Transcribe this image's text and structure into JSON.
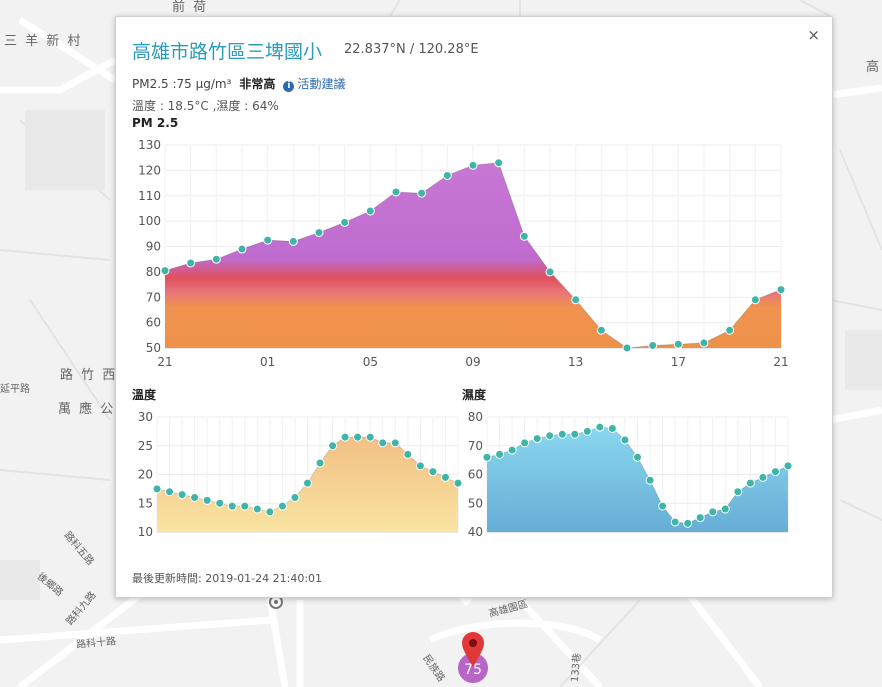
{
  "map": {
    "labels": [
      "前 荷",
      "三 羊 新 村",
      "高",
      "路 竹 西",
      "萬 應 公",
      "延平路",
      "路科五路",
      "後鄉路",
      "路科九路",
      "路科十路",
      "高雄園區",
      "民族路",
      "133巷"
    ],
    "cluster_value": "75"
  },
  "popup": {
    "title": "高雄市路竹區三埤國小",
    "coords": "22.837°N / 120.28°E",
    "close_icon": "×",
    "pm_text": "PM2.5 :75 μg/m³",
    "level": "非常高",
    "advice_link": "活動建議",
    "info_glyph": "i",
    "weather_text": "溫度 : 18.5°C ,濕度 : 64%",
    "updated": "最後更新時間: 2019-01-24 21:40:01"
  },
  "chart_data": [
    {
      "type": "area",
      "title": "PM 2.5",
      "x_tick_labels": [
        "21",
        "01",
        "05",
        "09",
        "13",
        "17",
        "21"
      ],
      "ylim": [
        50,
        130
      ],
      "yticks": [
        50,
        60,
        70,
        80,
        90,
        100,
        110,
        120,
        130
      ],
      "values": [
        80.5,
        83.5,
        85,
        89,
        92.5,
        92,
        95.5,
        99.5,
        104,
        111.5,
        111,
        118,
        122,
        123,
        94,
        80,
        69,
        57,
        50,
        51,
        51.5,
        52,
        57,
        69,
        73
      ]
    },
    {
      "type": "area",
      "title": "溫度",
      "ylim": [
        10,
        30
      ],
      "yticks": [
        10,
        15,
        20,
        25,
        30
      ],
      "values": [
        17.5,
        17,
        16.5,
        16,
        15.5,
        15,
        14.5,
        14.5,
        14,
        13.5,
        14.5,
        16,
        18.5,
        22,
        25,
        26.5,
        26.5,
        26.5,
        25.5,
        25.5,
        23.5,
        21.5,
        20.5,
        19.5,
        18.5
      ]
    },
    {
      "type": "area",
      "title": "濕度",
      "ylim": [
        40,
        80
      ],
      "yticks": [
        40,
        50,
        60,
        70,
        80
      ],
      "values": [
        66,
        67,
        68.5,
        71,
        72.5,
        73.5,
        74,
        74,
        75,
        76.5,
        76,
        72,
        66,
        58,
        49,
        43.5,
        43,
        45,
        47,
        48,
        54,
        57,
        59,
        61,
        63
      ]
    }
  ]
}
